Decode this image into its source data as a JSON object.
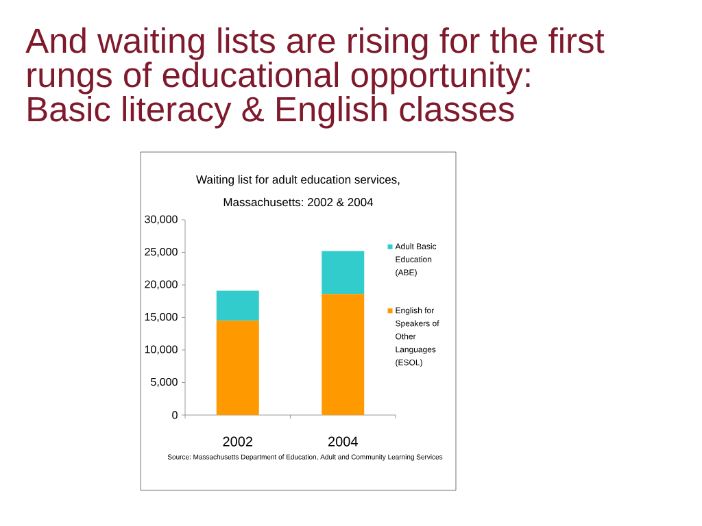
{
  "chart_data": {
    "type": "bar",
    "stacked": true,
    "title": "And waiting lists are rising for the first rungs of educational opportunity: Basic literacy & English classes",
    "subtitle": "Waiting list for adult education services, Massachusetts: 2002 & 2004",
    "categories": [
      "2002",
      "2004"
    ],
    "series": [
      {
        "name": "English for Speakers of Other Languages (ESOL)",
        "color": "#ff9900",
        "values": [
          14500,
          18600
        ]
      },
      {
        "name": "Adult Basic Education (ABE)",
        "color": "#33cccc",
        "values": [
          4600,
          6600
        ]
      }
    ],
    "ylim": [
      0,
      30000
    ],
    "yticks": [
      0,
      {
        "value": 5000,
        "label": "5,000"
      },
      {
        "value": 10000,
        "label": "10,000"
      },
      {
        "value": 15000,
        "label": "15,000"
      },
      {
        "value": 20000,
        "label": "20,000"
      },
      {
        "value": 25000,
        "label": "25,000"
      },
      {
        "value": 30000,
        "label": "30,000"
      }
    ],
    "legend": "right",
    "annotations": [
      "Source: Massachusetts Department of Education, Adult and Community Learning Services"
    ]
  }
}
